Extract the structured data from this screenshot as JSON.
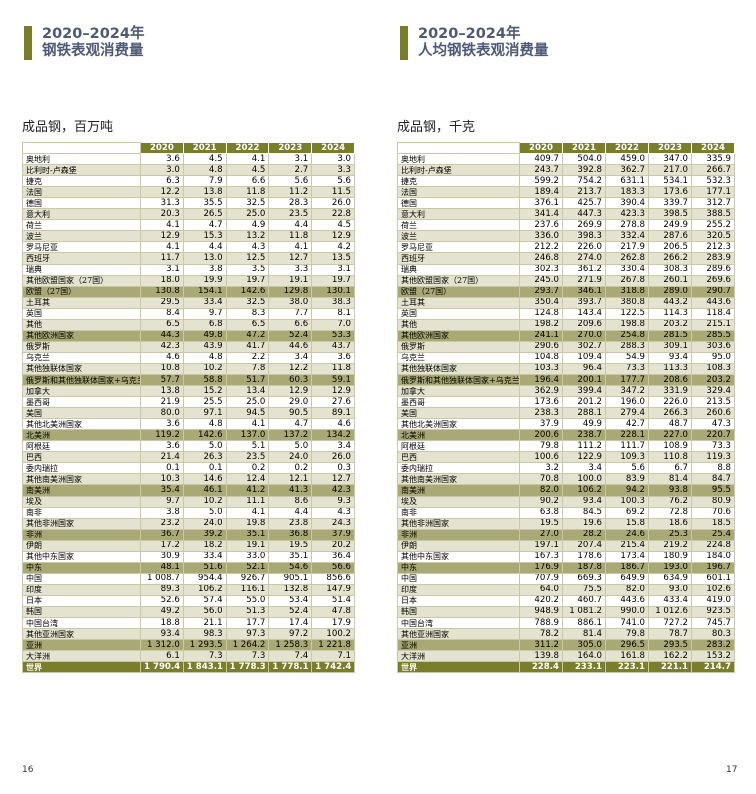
{
  "left": {
    "title_line1": "2020–2024年",
    "title_line2": "钢铁表观消费量",
    "unit": "成品钢，百万吨",
    "page_number": "16",
    "columns": [
      "2020",
      "2021",
      "2022",
      "2023",
      "2024"
    ],
    "rows": [
      {
        "label": "奥地利",
        "values": [
          "3.6",
          "4.5",
          "4.1",
          "3.1",
          "3.0"
        ]
      },
      {
        "label": "比利时-卢森堡",
        "values": [
          "3.0",
          "4.8",
          "4.5",
          "2.7",
          "3.3"
        ]
      },
      {
        "label": "捷克",
        "values": [
          "6.3",
          "7.9",
          "6.6",
          "5.6",
          "5.6"
        ]
      },
      {
        "label": "法国",
        "values": [
          "12.2",
          "13.8",
          "11.8",
          "11.2",
          "11.5"
        ]
      },
      {
        "label": "德国",
        "values": [
          "31.3",
          "35.5",
          "32.5",
          "28.3",
          "26.0"
        ]
      },
      {
        "label": "意大利",
        "values": [
          "20.3",
          "26.5",
          "25.0",
          "23.5",
          "22.8"
        ]
      },
      {
        "label": "荷兰",
        "values": [
          "4.1",
          "4.7",
          "4.9",
          "4.4",
          "4.5"
        ]
      },
      {
        "label": "波兰",
        "values": [
          "12.9",
          "15.3",
          "13.2",
          "11.8",
          "12.9"
        ]
      },
      {
        "label": "罗马尼亚",
        "values": [
          "4.1",
          "4.4",
          "4.3",
          "4.1",
          "4.2"
        ]
      },
      {
        "label": "西班牙",
        "values": [
          "11.7",
          "13.0",
          "12.5",
          "12.7",
          "13.5"
        ]
      },
      {
        "label": "瑞典",
        "values": [
          "3.1",
          "3.8",
          "3.5",
          "3.3",
          "3.1"
        ]
      },
      {
        "label": "其他欧盟国家（27国）",
        "values": [
          "18.0",
          "19.9",
          "19.7",
          "19.1",
          "19.7"
        ]
      },
      {
        "label": "欧盟（27国）",
        "values": [
          "130.8",
          "154.1",
          "142.6",
          "129.8",
          "130.1"
        ],
        "total": true
      },
      {
        "label": "土耳其",
        "values": [
          "29.5",
          "33.4",
          "32.5",
          "38.0",
          "38.3"
        ]
      },
      {
        "label": "英国",
        "values": [
          "8.4",
          "9.7",
          "8.3",
          "7.7",
          "8.1"
        ]
      },
      {
        "label": "其他",
        "values": [
          "6.5",
          "6.8",
          "6.5",
          "6.6",
          "7.0"
        ]
      },
      {
        "label": "其他欧洲国家",
        "values": [
          "44.3",
          "49.8",
          "47.2",
          "52.4",
          "53.3"
        ],
        "total": true
      },
      {
        "label": "俄罗斯",
        "values": [
          "42.3",
          "43.9",
          "41.7",
          "44.6",
          "43.7"
        ]
      },
      {
        "label": "乌克兰",
        "values": [
          "4.6",
          "4.8",
          "2.2",
          "3.4",
          "3.6"
        ]
      },
      {
        "label": "其他独联体国家",
        "values": [
          "10.8",
          "10.2",
          "7.8",
          "12.2",
          "11.8"
        ]
      },
      {
        "label": "俄罗斯和其他独联体国家+乌克兰",
        "values": [
          "57.7",
          "58.8",
          "51.7",
          "60.3",
          "59.1"
        ],
        "total": true
      },
      {
        "label": "加拿大",
        "values": [
          "13.8",
          "15.2",
          "13.4",
          "12.9",
          "12.9"
        ]
      },
      {
        "label": "墨西哥",
        "values": [
          "21.9",
          "25.5",
          "25.0",
          "29.0",
          "27.6"
        ]
      },
      {
        "label": "美国",
        "values": [
          "80.0",
          "97.1",
          "94.5",
          "90.5",
          "89.1"
        ]
      },
      {
        "label": "其他北美洲国家",
        "values": [
          "3.6",
          "4.8",
          "4.1",
          "4.7",
          "4.6"
        ]
      },
      {
        "label": "北美洲",
        "values": [
          "119.2",
          "142.6",
          "137.0",
          "137.2",
          "134.2"
        ],
        "total": true
      },
      {
        "label": "阿根廷",
        "values": [
          "3.6",
          "5.0",
          "5.1",
          "5.0",
          "3.4"
        ]
      },
      {
        "label": "巴西",
        "values": [
          "21.4",
          "26.3",
          "23.5",
          "24.0",
          "26.0"
        ]
      },
      {
        "label": "委内瑞拉",
        "values": [
          "0.1",
          "0.1",
          "0.2",
          "0.2",
          "0.3"
        ]
      },
      {
        "label": "其他南美洲国家",
        "values": [
          "10.3",
          "14.6",
          "12.4",
          "12.1",
          "12.7"
        ]
      },
      {
        "label": "南美洲",
        "values": [
          "35.4",
          "46.1",
          "41.2",
          "41.3",
          "42.3"
        ],
        "total": true
      },
      {
        "label": "埃及",
        "values": [
          "9.7",
          "10.2",
          "11.1",
          "8.6",
          "9.3"
        ]
      },
      {
        "label": "南非",
        "values": [
          "3.8",
          "5.0",
          "4.1",
          "4.4",
          "4.3"
        ]
      },
      {
        "label": "其他非洲国家",
        "values": [
          "23.2",
          "24.0",
          "19.8",
          "23.8",
          "24.3"
        ]
      },
      {
        "label": "非洲",
        "values": [
          "36.7",
          "39.2",
          "35.1",
          "36.8",
          "37.9"
        ],
        "total": true
      },
      {
        "label": "伊朗",
        "values": [
          "17.2",
          "18.2",
          "19.1",
          "19.5",
          "20.2"
        ]
      },
      {
        "label": "其他中东国家",
        "values": [
          "30.9",
          "33.4",
          "33.0",
          "35.1",
          "36.4"
        ]
      },
      {
        "label": "中东",
        "values": [
          "48.1",
          "51.6",
          "52.1",
          "54.6",
          "56.6"
        ],
        "total": true
      },
      {
        "label": "中国",
        "values": [
          "1 008.7",
          "954.4",
          "926.7",
          "905.1",
          "856.6"
        ]
      },
      {
        "label": "印度",
        "values": [
          "89.3",
          "106.2",
          "116.1",
          "132.8",
          "147.9"
        ]
      },
      {
        "label": "日本",
        "values": [
          "52.6",
          "57.4",
          "55.0",
          "53.4",
          "51.4"
        ]
      },
      {
        "label": "韩国",
        "values": [
          "49.2",
          "56.0",
          "51.3",
          "52.4",
          "47.8"
        ]
      },
      {
        "label": "中国台湾",
        "values": [
          "18.8",
          "21.1",
          "17.7",
          "17.4",
          "17.9"
        ]
      },
      {
        "label": "其他亚洲国家",
        "values": [
          "93.4",
          "98.3",
          "97.3",
          "97.2",
          "100.2"
        ]
      },
      {
        "label": "亚洲",
        "values": [
          "1 312.0",
          "1 293.5",
          "1 264.2",
          "1 258.3",
          "1 221.8"
        ],
        "total": true
      },
      {
        "label": "大洋洲",
        "values": [
          "6.1",
          "7.3",
          "7.3",
          "7.4",
          "7.1"
        ]
      },
      {
        "label": "世界",
        "values": [
          "1 790.4",
          "1 843.1",
          "1 778.3",
          "1 778.1",
          "1 742.4"
        ],
        "grand": true
      }
    ]
  },
  "right": {
    "title_line1": "2020–2024年",
    "title_line2": "人均钢铁表观消费量",
    "unit": "成品钢，千克",
    "page_number": "17",
    "columns": [
      "2020",
      "2021",
      "2022",
      "2023",
      "2024"
    ],
    "rows": [
      {
        "label": "奥地利",
        "values": [
          "409.7",
          "504.0",
          "459.0",
          "347.0",
          "335.9"
        ]
      },
      {
        "label": "比利时-卢森堡",
        "values": [
          "243.7",
          "392.8",
          "362.7",
          "217.0",
          "266.7"
        ]
      },
      {
        "label": "捷克",
        "values": [
          "599.2",
          "754.2",
          "631.1",
          "534.1",
          "532.3"
        ]
      },
      {
        "label": "法国",
        "values": [
          "189.4",
          "213.7",
          "183.3",
          "173.6",
          "177.1"
        ]
      },
      {
        "label": "德国",
        "values": [
          "376.1",
          "425.7",
          "390.4",
          "339.7",
          "312.7"
        ]
      },
      {
        "label": "意大利",
        "values": [
          "341.4",
          "447.3",
          "423.3",
          "398.5",
          "388.5"
        ]
      },
      {
        "label": "荷兰",
        "values": [
          "237.6",
          "269.9",
          "278.8",
          "249.9",
          "255.2"
        ]
      },
      {
        "label": "波兰",
        "values": [
          "336.0",
          "398.3",
          "332.4",
          "287.6",
          "320.5"
        ]
      },
      {
        "label": "罗马尼亚",
        "values": [
          "212.2",
          "226.0",
          "217.9",
          "206.5",
          "212.3"
        ]
      },
      {
        "label": "西班牙",
        "values": [
          "246.8",
          "274.0",
          "262.8",
          "266.2",
          "283.9"
        ]
      },
      {
        "label": "瑞典",
        "values": [
          "302.3",
          "361.2",
          "330.4",
          "308.3",
          "289.6"
        ]
      },
      {
        "label": "其他欧盟国家（27国）",
        "values": [
          "245.0",
          "271.9",
          "267.8",
          "260.1",
          "269.6"
        ]
      },
      {
        "label": "欧盟（27国）",
        "values": [
          "293.7",
          "346.1",
          "318.8",
          "289.0",
          "290.7"
        ],
        "total": true
      },
      {
        "label": "土耳其",
        "values": [
          "350.4",
          "393.7",
          "380.8",
          "443.2",
          "443.6"
        ]
      },
      {
        "label": "英国",
        "values": [
          "124.8",
          "143.4",
          "122.5",
          "114.3",
          "118.4"
        ]
      },
      {
        "label": "其他",
        "values": [
          "198.2",
          "209.6",
          "198.8",
          "203.2",
          "215.1"
        ]
      },
      {
        "label": "其他欧洲国家",
        "values": [
          "241.1",
          "270.0",
          "254.8",
          "281.5",
          "285.5"
        ],
        "total": true
      },
      {
        "label": "俄罗斯",
        "values": [
          "290.6",
          "302.7",
          "288.3",
          "309.1",
          "303.6"
        ]
      },
      {
        "label": "乌克兰",
        "values": [
          "104.8",
          "109.4",
          "54.9",
          "93.4",
          "95.0"
        ]
      },
      {
        "label": "其他独联体国家",
        "values": [
          "103.3",
          "96.4",
          "73.3",
          "113.3",
          "108.3"
        ]
      },
      {
        "label": "俄罗斯和其他独联体国家+乌克兰",
        "values": [
          "196.4",
          "200.1",
          "177.7",
          "208.6",
          "203.2"
        ],
        "total": true
      },
      {
        "label": "加拿大",
        "values": [
          "362.9",
          "399.4",
          "347.2",
          "331.9",
          "329.4"
        ]
      },
      {
        "label": "墨西哥",
        "values": [
          "173.6",
          "201.2",
          "196.0",
          "226.0",
          "213.5"
        ]
      },
      {
        "label": "美国",
        "values": [
          "238.3",
          "288.1",
          "279.4",
          "266.3",
          "260.6"
        ]
      },
      {
        "label": "其他北美洲国家",
        "values": [
          "37.9",
          "49.9",
          "42.7",
          "48.7",
          "47.3"
        ]
      },
      {
        "label": "北美洲",
        "values": [
          "200.6",
          "238.7",
          "228.1",
          "227.0",
          "220.7"
        ],
        "total": true
      },
      {
        "label": "阿根廷",
        "values": [
          "79.8",
          "111.2",
          "111.7",
          "108.9",
          "73.3"
        ]
      },
      {
        "label": "巴西",
        "values": [
          "100.6",
          "122.9",
          "109.3",
          "110.8",
          "119.3"
        ]
      },
      {
        "label": "委内瑞拉",
        "values": [
          "3.2",
          "3.4",
          "5.6",
          "6.7",
          "8.8"
        ]
      },
      {
        "label": "其他南美洲国家",
        "values": [
          "70.8",
          "100.0",
          "83.9",
          "81.4",
          "84.7"
        ]
      },
      {
        "label": "南美洲",
        "values": [
          "82.0",
          "106.2",
          "94.2",
          "93.8",
          "95.5"
        ],
        "total": true
      },
      {
        "label": "埃及",
        "values": [
          "90.2",
          "93.4",
          "100.3",
          "76.2",
          "80.9"
        ]
      },
      {
        "label": "南非",
        "values": [
          "63.8",
          "84.5",
          "69.2",
          "72.8",
          "70.6"
        ]
      },
      {
        "label": "其他非洲国家",
        "values": [
          "19.5",
          "19.6",
          "15.8",
          "18.6",
          "18.5"
        ]
      },
      {
        "label": "非洲",
        "values": [
          "27.0",
          "28.2",
          "24.6",
          "25.3",
          "25.4"
        ],
        "total": true
      },
      {
        "label": "伊朗",
        "values": [
          "197.1",
          "207.4",
          "215.4",
          "219.2",
          "224.8"
        ]
      },
      {
        "label": "其他中东国家",
        "values": [
          "167.3",
          "178.6",
          "173.4",
          "180.9",
          "184.0"
        ]
      },
      {
        "label": "中东",
        "values": [
          "176.9",
          "187.8",
          "186.7",
          "193.0",
          "196.7"
        ],
        "total": true
      },
      {
        "label": "中国",
        "values": [
          "707.9",
          "669.3",
          "649.9",
          "634.9",
          "601.1"
        ]
      },
      {
        "label": "印度",
        "values": [
          "64.0",
          "75.5",
          "82.0",
          "93.0",
          "102.6"
        ]
      },
      {
        "label": "日本",
        "values": [
          "420.2",
          "460.7",
          "443.6",
          "433.4",
          "419.0"
        ]
      },
      {
        "label": "韩国",
        "values": [
          "948.9",
          "1 081.2",
          "990.0",
          "1 012.6",
          "923.5"
        ]
      },
      {
        "label": "中国台湾",
        "values": [
          "788.9",
          "886.1",
          "741.0",
          "727.2",
          "745.7"
        ]
      },
      {
        "label": "其他亚洲国家",
        "values": [
          "78.2",
          "81.4",
          "79.8",
          "78.7",
          "80.3"
        ]
      },
      {
        "label": "亚洲",
        "values": [
          "311.2",
          "305.0",
          "296.5",
          "293.5",
          "283.2"
        ],
        "total": true
      },
      {
        "label": "大洋洲",
        "values": [
          "139.8",
          "164.0",
          "161.8",
          "162.2",
          "153.2"
        ]
      },
      {
        "label": "世界",
        "values": [
          "228.4",
          "233.1",
          "223.1",
          "221.1",
          "214.7"
        ],
        "grand": true
      }
    ]
  },
  "colors": {
    "accent": "#7a7d2a",
    "title": "#4e5a78",
    "subtotal_row": "#a9a975",
    "stripe_row": "#e3e3cf"
  }
}
